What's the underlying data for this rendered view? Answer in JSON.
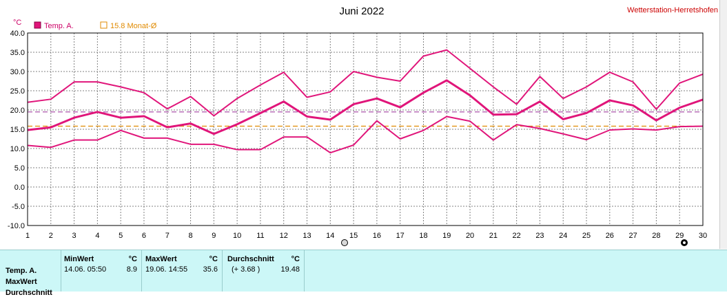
{
  "header": {
    "title": "Juni 2022",
    "station": "Wetterstation-Herretshofen",
    "unit": "°C"
  },
  "legend": {
    "temp_label": "Temp. A.",
    "monthly_avg_label": "15.8 Monat-Ø"
  },
  "colors": {
    "series": "#e0157a",
    "monthly_avg": "#e08a00",
    "reference": "#a040a0",
    "grid": "#808080",
    "stats_bg": "#ccf7f7",
    "station_text": "#cc0000"
  },
  "chart_data": {
    "type": "line",
    "title": "Juni 2022",
    "ylabel": "°C",
    "xlabel": "",
    "ylim": [
      -10,
      40
    ],
    "yticks": [
      40.0,
      35.0,
      30.0,
      25.0,
      20.0,
      15.0,
      10.0,
      5.0,
      0.0,
      -5.0,
      -10.0
    ],
    "x": [
      1,
      2,
      3,
      4,
      5,
      6,
      7,
      8,
      9,
      10,
      11,
      12,
      13,
      14,
      15,
      16,
      17,
      18,
      19,
      20,
      21,
      22,
      23,
      24,
      25,
      26,
      27,
      28,
      29,
      30
    ],
    "grid": true,
    "legend_position": "top-left",
    "series": [
      {
        "name": "Temp. A.",
        "style": "max",
        "values": [
          22.0,
          22.8,
          27.3,
          27.3,
          26.0,
          24.5,
          20.3,
          23.5,
          18.5,
          23.0,
          26.5,
          29.8,
          23.3,
          24.7,
          30.0,
          28.5,
          27.5,
          34.0,
          35.6,
          30.8,
          26.0,
          21.5,
          28.7,
          23.0,
          26.0,
          29.8,
          27.3,
          20.2,
          27.0,
          29.3
        ]
      },
      {
        "name": "Temp. A.",
        "style": "avg",
        "values": [
          14.8,
          15.5,
          18.0,
          19.5,
          18.0,
          18.4,
          15.5,
          16.5,
          13.8,
          16.3,
          19.2,
          22.2,
          18.3,
          17.5,
          21.5,
          23.0,
          20.7,
          24.5,
          27.7,
          23.8,
          18.8,
          18.9,
          22.2,
          17.6,
          19.2,
          22.5,
          21.2,
          17.3,
          20.6,
          22.7
        ]
      },
      {
        "name": "Temp. A.",
        "style": "min",
        "values": [
          10.8,
          10.3,
          12.2,
          12.2,
          14.7,
          12.7,
          12.7,
          11.1,
          11.1,
          9.7,
          9.7,
          13.0,
          13.0,
          8.9,
          10.9,
          17.2,
          12.5,
          14.7,
          18.3,
          17.1,
          12.2,
          16.2,
          15.2,
          13.8,
          12.3,
          14.8,
          15.1,
          14.8,
          15.7,
          15.8
        ]
      }
    ],
    "reference_lines": [
      {
        "name": "15.8 Monat-Ø",
        "value": 15.8
      },
      {
        "value": 19.5
      }
    ]
  },
  "stats": {
    "row_labels": [
      "Temp. A.",
      "MaxWert",
      "Durchschnitt"
    ],
    "minwert": {
      "header": "MinWert",
      "unit": "°C",
      "datetime": "14.06.  05:50",
      "value": "8.9"
    },
    "maxwert": {
      "header": "MaxWert",
      "unit": "°C",
      "datetime": "19.06.  14:55",
      "value": "35.6"
    },
    "durchschnitt": {
      "header": "Durchschnitt",
      "unit": "°C",
      "diff": "(+ 3.68 )",
      "value": "19.48"
    }
  }
}
